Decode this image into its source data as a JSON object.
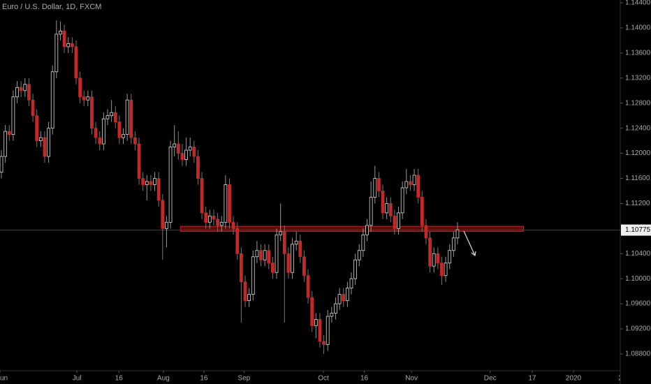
{
  "chart_data": {
    "type": "candlestick",
    "title": "Euro / U.S. Dollar, 1D, FXCM",
    "open": [
      1.117,
      1.1195,
      1.1235,
      1.123,
      1.129,
      1.1305,
      1.13,
      1.131,
      1.1285,
      1.126,
      1.122,
      1.1225,
      1.1195,
      1.124,
      1.133,
      1.139,
      1.1395,
      1.137,
      1.1375,
      1.137,
      1.132,
      1.129,
      1.1285,
      1.129,
      1.124,
      1.1225,
      1.1215,
      1.1255,
      1.126,
      1.1265,
      1.125,
      1.1225,
      1.123,
      1.1285,
      1.1225,
      1.1215,
      1.116,
      1.115,
      1.1155,
      1.115,
      1.116,
      1.1125,
      1.108,
      1.109,
      1.121,
      1.1215,
      1.12,
      1.119,
      1.1205,
      1.121,
      1.1195,
      1.116,
      1.1105,
      1.109,
      1.11,
      1.1095,
      1.1085,
      1.109,
      1.115,
      1.109,
      1.108,
      1.104,
      1.0995,
      1.0965,
      1.0975,
      1.1035,
      1.1045,
      1.103,
      1.1045,
      1.1025,
      1.101,
      1.107,
      1.1075,
      1.104,
      1.101,
      1.1055,
      1.106,
      1.1035,
      1.1005,
      1.097,
      1.0925,
      1.0935,
      1.09,
      1.0895,
      1.094,
      1.0945,
      1.096,
      1.0975,
      1.0965,
      1.0985,
      1.1,
      1.103,
      1.1045,
      1.107,
      1.1085,
      1.113,
      1.116,
      1.114,
      1.1105,
      1.112,
      1.11,
      1.108,
      1.1105,
      1.1145,
      1.1155,
      1.115,
      1.1165,
      1.113,
      1.1085,
      1.1065,
      1.102,
      1.104,
      1.1025,
      1.1005,
      1.1025,
      1.1045,
      1.1065
    ],
    "high": [
      1.1205,
      1.1245,
      1.1245,
      1.13,
      1.1315,
      1.1315,
      1.132,
      1.132,
      1.1295,
      1.127,
      1.1235,
      1.1235,
      1.125,
      1.134,
      1.1412,
      1.141,
      1.1405,
      1.1385,
      1.1385,
      1.138,
      1.133,
      1.13,
      1.13,
      1.13,
      1.125,
      1.1235,
      1.1265,
      1.127,
      1.1285,
      1.1275,
      1.126,
      1.124,
      1.1295,
      1.1295,
      1.1235,
      1.1225,
      1.117,
      1.1165,
      1.1165,
      1.117,
      1.117,
      1.1135,
      1.11,
      1.122,
      1.1245,
      1.1235,
      1.1215,
      1.1225,
      1.1225,
      1.122,
      1.1205,
      1.117,
      1.1115,
      1.111,
      1.111,
      1.1105,
      1.11,
      1.1165,
      1.116,
      1.11,
      1.109,
      1.105,
      1.1005,
      1.0985,
      1.1045,
      1.106,
      1.1055,
      1.1055,
      1.1055,
      1.1035,
      1.108,
      1.112,
      1.1085,
      1.105,
      1.1065,
      1.1075,
      1.107,
      1.1045,
      1.1015,
      1.098,
      1.0945,
      1.0945,
      1.091,
      1.095,
      1.0955,
      1.097,
      1.0985,
      1.0985,
      1.0995,
      1.101,
      1.104,
      1.1055,
      1.108,
      1.1095,
      1.1155,
      1.118,
      1.117,
      1.115,
      1.113,
      1.113,
      1.111,
      1.1115,
      1.1155,
      1.1175,
      1.1165,
      1.1175,
      1.1175,
      1.114,
      1.1095,
      1.1075,
      1.105,
      1.105,
      1.1035,
      1.1035,
      1.1055,
      1.1075,
      1.109
    ],
    "low": [
      1.116,
      1.1185,
      1.122,
      1.122,
      1.128,
      1.129,
      1.129,
      1.1275,
      1.125,
      1.121,
      1.121,
      1.1185,
      1.1185,
      1.123,
      1.132,
      1.138,
      1.136,
      1.136,
      1.136,
      1.131,
      1.128,
      1.1275,
      1.1275,
      1.123,
      1.1215,
      1.1205,
      1.1205,
      1.1245,
      1.125,
      1.124,
      1.1215,
      1.1215,
      1.122,
      1.1215,
      1.1205,
      1.115,
      1.114,
      1.1125,
      1.114,
      1.114,
      1.1115,
      1.103,
      1.105,
      1.108,
      1.1195,
      1.119,
      1.118,
      1.118,
      1.1195,
      1.1185,
      1.115,
      1.1095,
      1.108,
      1.108,
      1.1085,
      1.1075,
      1.1075,
      1.108,
      1.108,
      1.107,
      1.103,
      1.093,
      1.0955,
      1.0955,
      1.0965,
      1.1025,
      1.102,
      1.102,
      1.1015,
      1.1,
      1.1,
      1.106,
      1.093,
      1.1,
      1.1,
      1.1045,
      1.1025,
      1.0995,
      1.096,
      1.0915,
      1.0905,
      1.089,
      1.088,
      1.0885,
      1.093,
      1.0935,
      1.095,
      1.0955,
      1.0955,
      1.0975,
      1.099,
      1.102,
      1.1035,
      1.106,
      1.1075,
      1.112,
      1.113,
      1.1095,
      1.1095,
      1.109,
      1.107,
      1.107,
      1.1095,
      1.1135,
      1.114,
      1.114,
      1.112,
      1.1075,
      1.1055,
      1.101,
      1.101,
      1.1015,
      1.099,
      1.0995,
      1.1015,
      1.1035,
      1.1055
    ],
    "close": [
      1.1195,
      1.1235,
      1.123,
      1.129,
      1.1305,
      1.13,
      1.131,
      1.1285,
      1.126,
      1.122,
      1.1225,
      1.1195,
      1.124,
      1.133,
      1.139,
      1.1395,
      1.137,
      1.1375,
      1.137,
      1.132,
      1.129,
      1.1285,
      1.129,
      1.124,
      1.1225,
      1.1215,
      1.1255,
      1.126,
      1.1265,
      1.125,
      1.1225,
      1.123,
      1.1285,
      1.1225,
      1.1215,
      1.116,
      1.115,
      1.1155,
      1.115,
      1.116,
      1.1125,
      1.108,
      1.109,
      1.121,
      1.1215,
      1.12,
      1.119,
      1.1205,
      1.121,
      1.1195,
      1.116,
      1.1105,
      1.109,
      1.11,
      1.1095,
      1.1085,
      1.109,
      1.115,
      1.109,
      1.108,
      1.104,
      1.0995,
      1.0965,
      1.0975,
      1.1035,
      1.1045,
      1.103,
      1.1045,
      1.1025,
      1.101,
      1.107,
      1.1075,
      1.104,
      1.101,
      1.1055,
      1.106,
      1.1035,
      1.1005,
      1.097,
      1.0925,
      1.0935,
      1.09,
      1.0895,
      1.094,
      1.0945,
      1.096,
      1.0975,
      1.0965,
      1.0985,
      1.1,
      1.103,
      1.1045,
      1.107,
      1.1085,
      1.113,
      1.116,
      1.114,
      1.1105,
      1.112,
      1.11,
      1.108,
      1.1105,
      1.1145,
      1.1155,
      1.115,
      1.1165,
      1.113,
      1.1085,
      1.1065,
      1.102,
      1.104,
      1.1025,
      1.1005,
      1.1025,
      1.1045,
      1.1065,
      1.1078
    ],
    "up_color": "#000000",
    "down_color": "#c62828",
    "ylim": [
      1.08532,
      1.14445
    ],
    "yticks": [
      {
        "value": 1.144,
        "label": "1.14400"
      },
      {
        "value": 1.14,
        "label": "1.14000"
      },
      {
        "value": 1.136,
        "label": "1.13600"
      },
      {
        "value": 1.132,
        "label": "1.13200"
      },
      {
        "value": 1.128,
        "label": "1.12800"
      },
      {
        "value": 1.124,
        "label": "1.12400"
      },
      {
        "value": 1.12,
        "label": "1.12000"
      },
      {
        "value": 1.116,
        "label": "1.11600"
      },
      {
        "value": 1.112,
        "label": "1.11200"
      },
      {
        "value": 1.104,
        "label": "1.10400"
      },
      {
        "value": 1.1,
        "label": "1.10000"
      },
      {
        "value": 1.096,
        "label": "1.09600"
      },
      {
        "value": 1.092,
        "label": "1.09200"
      },
      {
        "value": 1.088,
        "label": "1.08800"
      }
    ],
    "xlim": [
      -0.36,
      157.4
    ],
    "xticks": [
      {
        "value": -0.36,
        "label": "un"
      },
      {
        "value": 19.2,
        "label": "Jul"
      },
      {
        "value": 29.9,
        "label": "16"
      },
      {
        "value": 41.2,
        "label": "Aug"
      },
      {
        "value": 51.5,
        "label": "16"
      },
      {
        "value": 61.7,
        "label": "Sep"
      },
      {
        "value": 81.9,
        "label": "Oct"
      },
      {
        "value": 92.3,
        "label": "16"
      },
      {
        "value": 104.3,
        "label": "Nov"
      },
      {
        "value": 124.3,
        "label": "Dec"
      },
      {
        "value": 135,
        "label": "17"
      },
      {
        "value": 145.5,
        "label": "2020"
      },
      {
        "value": 157.4,
        "label": "2"
      }
    ],
    "last_price": {
      "value": 1.10775,
      "label": "1.10775"
    },
    "zone": [
      1.10755,
      1.10835
    ],
    "zone_x": [
      45.6,
      132.8
    ]
  }
}
